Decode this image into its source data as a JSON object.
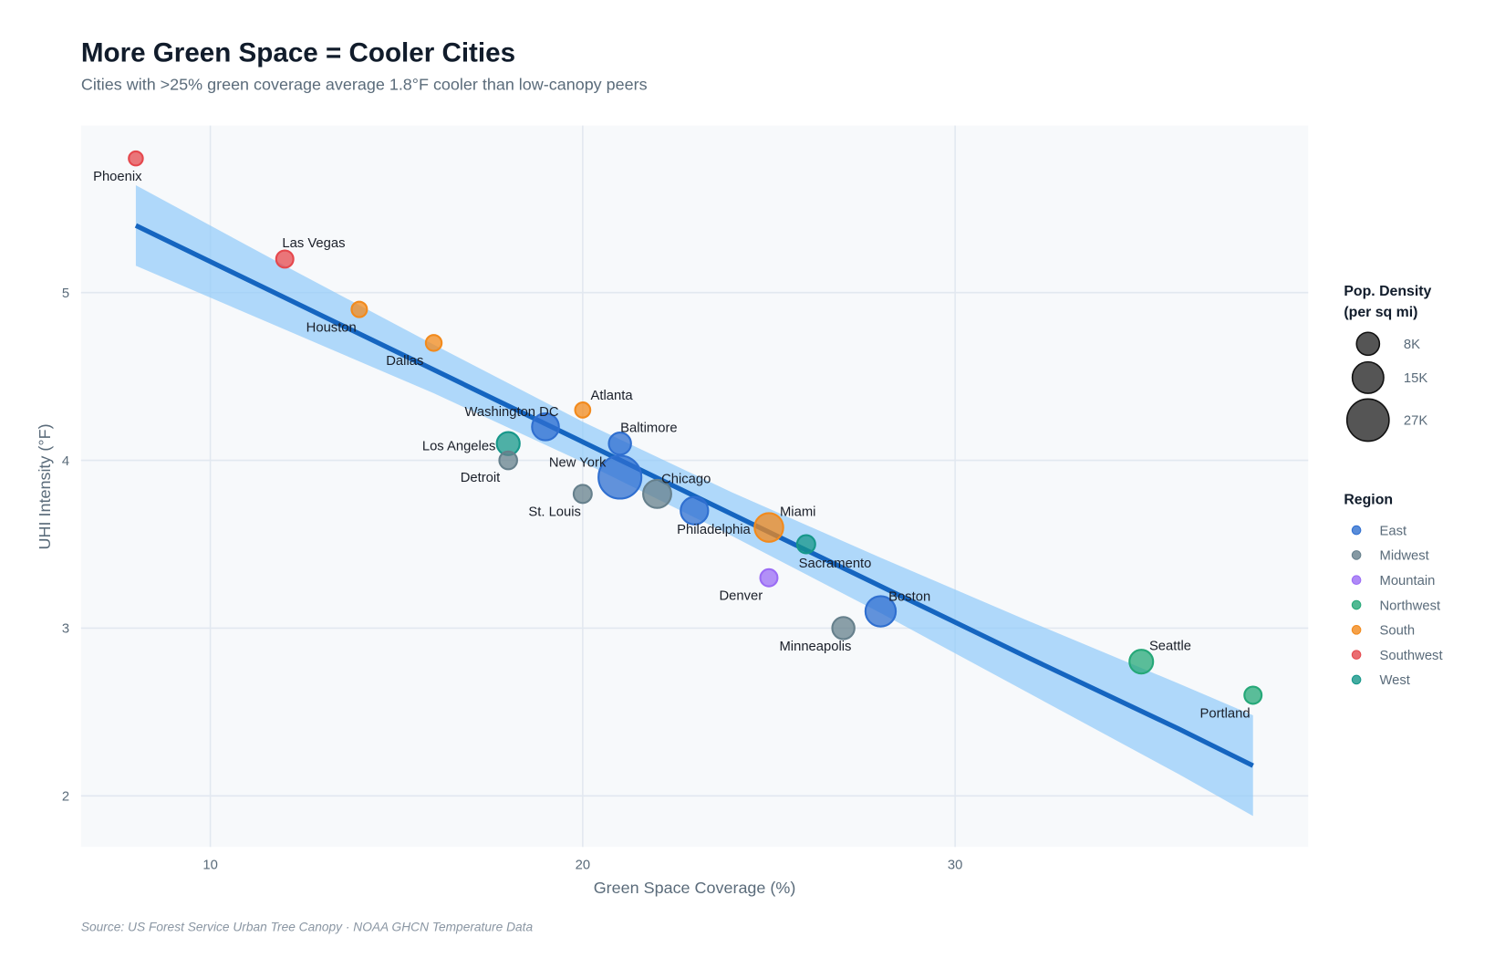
{
  "chart_data": {
    "type": "scatter",
    "title": "More Green Space = Cooler Cities",
    "subtitle": "Cities with >25% green coverage average 1.8°F cooler than low-canopy peers",
    "xlabel": "Green Space Coverage (%)",
    "ylabel": "UHI Intensity (°F)",
    "source": "Source: US Forest Service Urban Tree Canopy · NOAA GHCN Temperature Data",
    "xlim": [
      6.5,
      39.5
    ],
    "ylim": [
      1.69,
      6.0
    ],
    "xticks": [
      10,
      20,
      30
    ],
    "yticks": [
      2,
      3,
      4,
      5
    ],
    "grid": true,
    "legend_placement": "right",
    "size_legend": {
      "title_line1": "Pop. Density",
      "title_line2": "(per sq mi)",
      "entries": [
        {
          "label": "8K",
          "value": 8000
        },
        {
          "label": "15K",
          "value": 15000
        },
        {
          "label": "27K",
          "value": 27000
        }
      ]
    },
    "color_legend": {
      "title": "Region",
      "entries": [
        {
          "label": "East",
          "color": "#2f6fd0"
        },
        {
          "label": "Midwest",
          "color": "#66808c"
        },
        {
          "label": "Mountain",
          "color": "#9b6cf5"
        },
        {
          "label": "Northwest",
          "color": "#25a878"
        },
        {
          "label": "South",
          "color": "#f28a1c"
        },
        {
          "label": "Southwest",
          "color": "#e5484d"
        },
        {
          "label": "West",
          "color": "#16978a"
        }
      ]
    },
    "points": [
      {
        "city": "Phoenix",
        "x": 8,
        "y": 5.8,
        "density": 3000,
        "region": "Southwest"
      },
      {
        "city": "Las Vegas",
        "x": 12,
        "y": 5.2,
        "density": 4500,
        "region": "Southwest"
      },
      {
        "city": "Houston",
        "x": 14,
        "y": 4.9,
        "density": 3600,
        "region": "South"
      },
      {
        "city": "Dallas",
        "x": 16,
        "y": 4.7,
        "density": 3800,
        "region": "South"
      },
      {
        "city": "Atlanta",
        "x": 20,
        "y": 4.3,
        "density": 3500,
        "region": "South"
      },
      {
        "city": "Washington DC",
        "x": 19,
        "y": 4.2,
        "density": 11000,
        "region": "East"
      },
      {
        "city": "Baltimore",
        "x": 21,
        "y": 4.1,
        "density": 7500,
        "region": "East"
      },
      {
        "city": "Los Angeles",
        "x": 18,
        "y": 4.1,
        "density": 8000,
        "region": "West"
      },
      {
        "city": "Detroit",
        "x": 18,
        "y": 4.0,
        "density": 4800,
        "region": "Midwest"
      },
      {
        "city": "New York",
        "x": 21,
        "y": 3.9,
        "density": 28000,
        "region": "East"
      },
      {
        "city": "St. Louis",
        "x": 20,
        "y": 3.8,
        "density": 5000,
        "region": "Midwest"
      },
      {
        "city": "Chicago",
        "x": 22,
        "y": 3.8,
        "density": 12000,
        "region": "Midwest"
      },
      {
        "city": "Philadelphia",
        "x": 23,
        "y": 3.7,
        "density": 11500,
        "region": "East"
      },
      {
        "city": "Miami",
        "x": 25,
        "y": 3.6,
        "density": 12500,
        "region": "South"
      },
      {
        "city": "Sacramento",
        "x": 26,
        "y": 3.5,
        "density": 5000,
        "region": "West"
      },
      {
        "city": "Denver",
        "x": 25,
        "y": 3.3,
        "density": 4500,
        "region": "Mountain"
      },
      {
        "city": "Minneapolis",
        "x": 27,
        "y": 3.0,
        "density": 7500,
        "region": "Midwest"
      },
      {
        "city": "Boston",
        "x": 28,
        "y": 3.1,
        "density": 14000,
        "region": "East"
      },
      {
        "city": "Seattle",
        "x": 35,
        "y": 2.8,
        "density": 8500,
        "region": "Northwest"
      },
      {
        "city": "Portland",
        "x": 38,
        "y": 2.6,
        "density": 4500,
        "region": "Northwest"
      }
    ],
    "trend": {
      "color": "#1565c0",
      "band_color": "#90caf9",
      "x": [
        8,
        12,
        16,
        20,
        24,
        28,
        32,
        36,
        38
      ],
      "y": [
        5.4,
        4.97,
        4.54,
        4.11,
        3.68,
        3.25,
        2.82,
        2.4,
        2.18
      ],
      "ci_lower": [
        5.16,
        4.78,
        4.4,
        3.99,
        3.55,
        3.09,
        2.61,
        2.13,
        1.88
      ],
      "ci_upper": [
        5.64,
        5.16,
        4.69,
        4.23,
        3.81,
        3.42,
        3.04,
        2.67,
        2.48
      ]
    }
  }
}
